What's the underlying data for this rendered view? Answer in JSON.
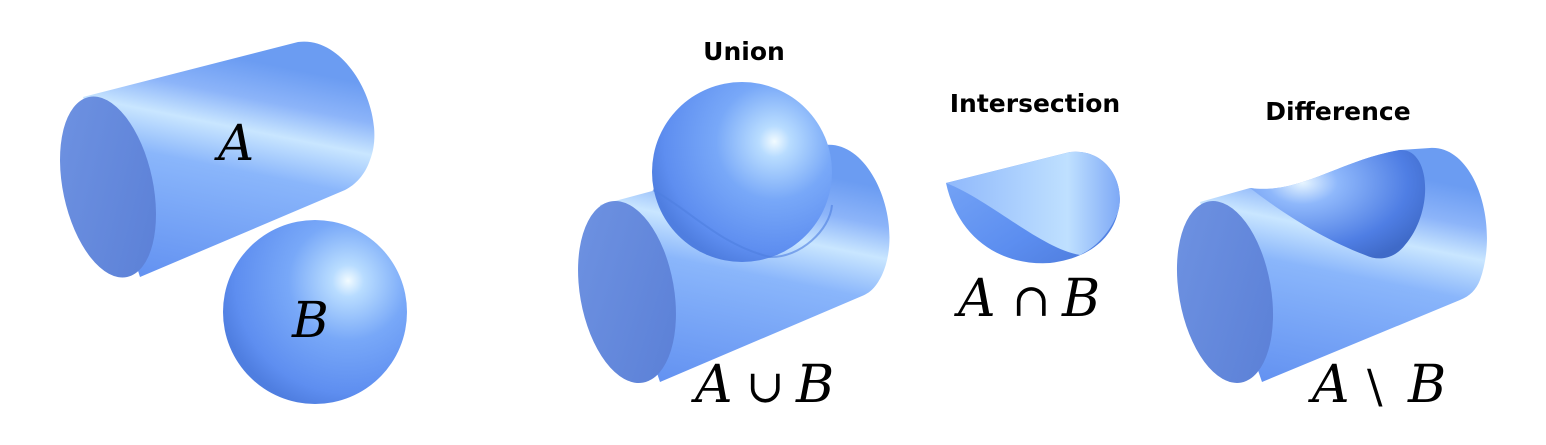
{
  "panels": {
    "inputs": {
      "label_a": "A",
      "label_b": "B"
    },
    "union": {
      "title": "Union",
      "expr_left": "A",
      "expr_op": "∪",
      "expr_right": "B"
    },
    "intersection": {
      "title": "Intersection",
      "expr_left": "A",
      "expr_op": "∩",
      "expr_right": "B"
    },
    "difference": {
      "title": "Difference",
      "expr_left": "A",
      "expr_op": "\\",
      "expr_right": "B"
    }
  },
  "colors": {
    "surface": "#6b9cf2",
    "surface_dark": "#5a82d8",
    "highlight": "#ddf2ff",
    "background": "#ffffff"
  }
}
